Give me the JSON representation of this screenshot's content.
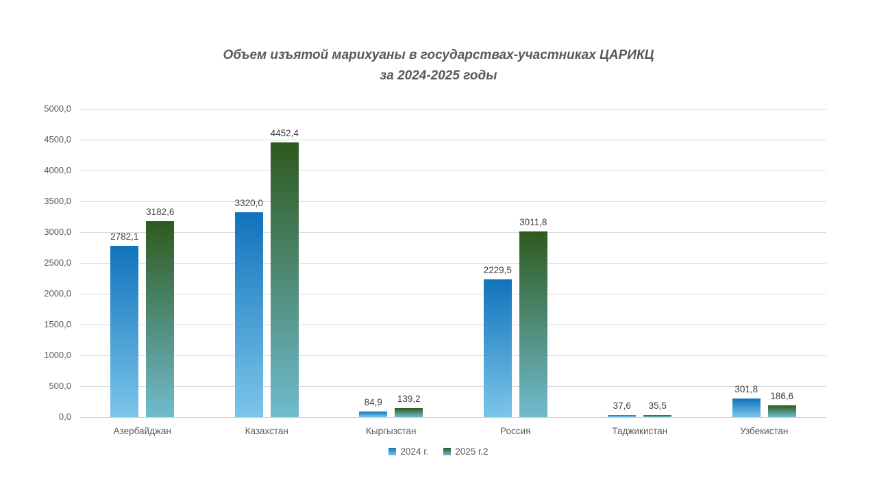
{
  "title": {
    "line1": "Объем изъятой марихуаны в государствах-участниках ЦАРИКЦ",
    "line2": "за 2024-2025 годы"
  },
  "chart_data": {
    "type": "bar",
    "title": "Объем изъятой марихуаны в государствах-участниках ЦАРИКЦ за 2024-2025 годы",
    "categories": [
      "Азербайджан",
      "Казахстан",
      "Кыргызстан",
      "Россия",
      "Таджикистан",
      "Узбекистан"
    ],
    "series": [
      {
        "name": "2024 г.",
        "values": [
          2782.1,
          3320.0,
          84.9,
          2229.5,
          37.6,
          301.8
        ],
        "value_labels": [
          "2782,1",
          "3320,0",
          "84,9",
          "2229,5",
          "37,6",
          "301,8"
        ],
        "color_top": "#1173bc",
        "color_bottom": "#7cc5ea"
      },
      {
        "name": "2025 г.2",
        "values": [
          3182.6,
          4452.4,
          139.2,
          3011.8,
          35.5,
          186.6
        ],
        "value_labels": [
          "3182,6",
          "4452,4",
          "139,2",
          "3011,8",
          "35,5",
          "186,6"
        ],
        "color_top": "#2d5a1d",
        "color_bottom": "#70bbce"
      }
    ],
    "ylim": [
      0,
      5000
    ],
    "ytick_step": 500,
    "ytick_labels": [
      "0,0",
      "500,0",
      "1000,0",
      "1500,0",
      "2000,0",
      "2500,0",
      "3000,0",
      "3500,0",
      "4000,0",
      "4500,0",
      "5000,0"
    ],
    "xlabel": "",
    "ylabel": "",
    "grid": true,
    "legend_position": "bottom"
  },
  "colors": {
    "background": "#ffffff",
    "gridline": "#d9d9d9",
    "axis_line": "#c6c6c6",
    "title_text": "#595959",
    "tick_text": "#595959",
    "value_label_text": "#404040",
    "legend_text": "#595959"
  }
}
